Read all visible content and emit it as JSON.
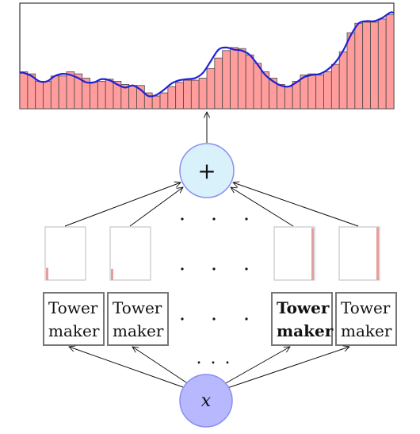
{
  "plus_node": {
    "label": "+"
  },
  "input_node": {
    "label": "x"
  },
  "tower_makers": [
    {
      "line1": "Tower",
      "line2": "maker"
    },
    {
      "line1": "Tower",
      "line2": "maker"
    },
    {
      "line1": "Tower",
      "line2": "maker"
    },
    {
      "line1": "Tower",
      "line2": "maker"
    }
  ],
  "ellipsis": {
    "dots": ". . ."
  },
  "tower_levels": [
    0.23,
    0.21,
    0.98,
    0.99
  ],
  "chart_data": {
    "type": "bar",
    "title": "",
    "xlabel": "",
    "ylabel": "",
    "ylim": [
      0,
      1
    ],
    "bars": [
      0.35,
      0.33,
      0.26,
      0.26,
      0.31,
      0.31,
      0.35,
      0.33,
      0.29,
      0.25,
      0.26,
      0.28,
      0.26,
      0.23,
      0.22,
      0.22,
      0.15,
      0.12,
      0.15,
      0.21,
      0.25,
      0.27,
      0.27,
      0.29,
      0.38,
      0.48,
      0.55,
      0.58,
      0.57,
      0.51,
      0.43,
      0.35,
      0.29,
      0.23,
      0.21,
      0.26,
      0.32,
      0.33,
      0.32,
      0.35,
      0.42,
      0.54,
      0.72,
      0.81,
      0.82,
      0.82,
      0.85,
      0.89
    ],
    "curve": [
      0.34,
      0.31,
      0.26,
      0.26,
      0.31,
      0.33,
      0.32,
      0.29,
      0.25,
      0.25,
      0.28,
      0.27,
      0.23,
      0.2,
      0.22,
      0.18,
      0.12,
      0.13,
      0.18,
      0.24,
      0.27,
      0.28,
      0.29,
      0.34,
      0.45,
      0.56,
      0.58,
      0.56,
      0.55,
      0.51,
      0.42,
      0.32,
      0.26,
      0.22,
      0.21,
      0.25,
      0.3,
      0.32,
      0.33,
      0.37,
      0.44,
      0.55,
      0.7,
      0.81,
      0.83,
      0.83,
      0.86,
      0.91
    ],
    "colors": {
      "bar_fill": "#ff9c9c",
      "bar_stroke": "#4a4a4a",
      "curve": "#1f22d6"
    }
  },
  "colors": {
    "plus_fill": "#d9f1fb",
    "plus_stroke": "#8a8ff0",
    "x_fill": "#b8b8ff",
    "x_stroke": "#8a8ff0",
    "box_stroke": "#777777",
    "tower_bar": "#e79d9d"
  }
}
